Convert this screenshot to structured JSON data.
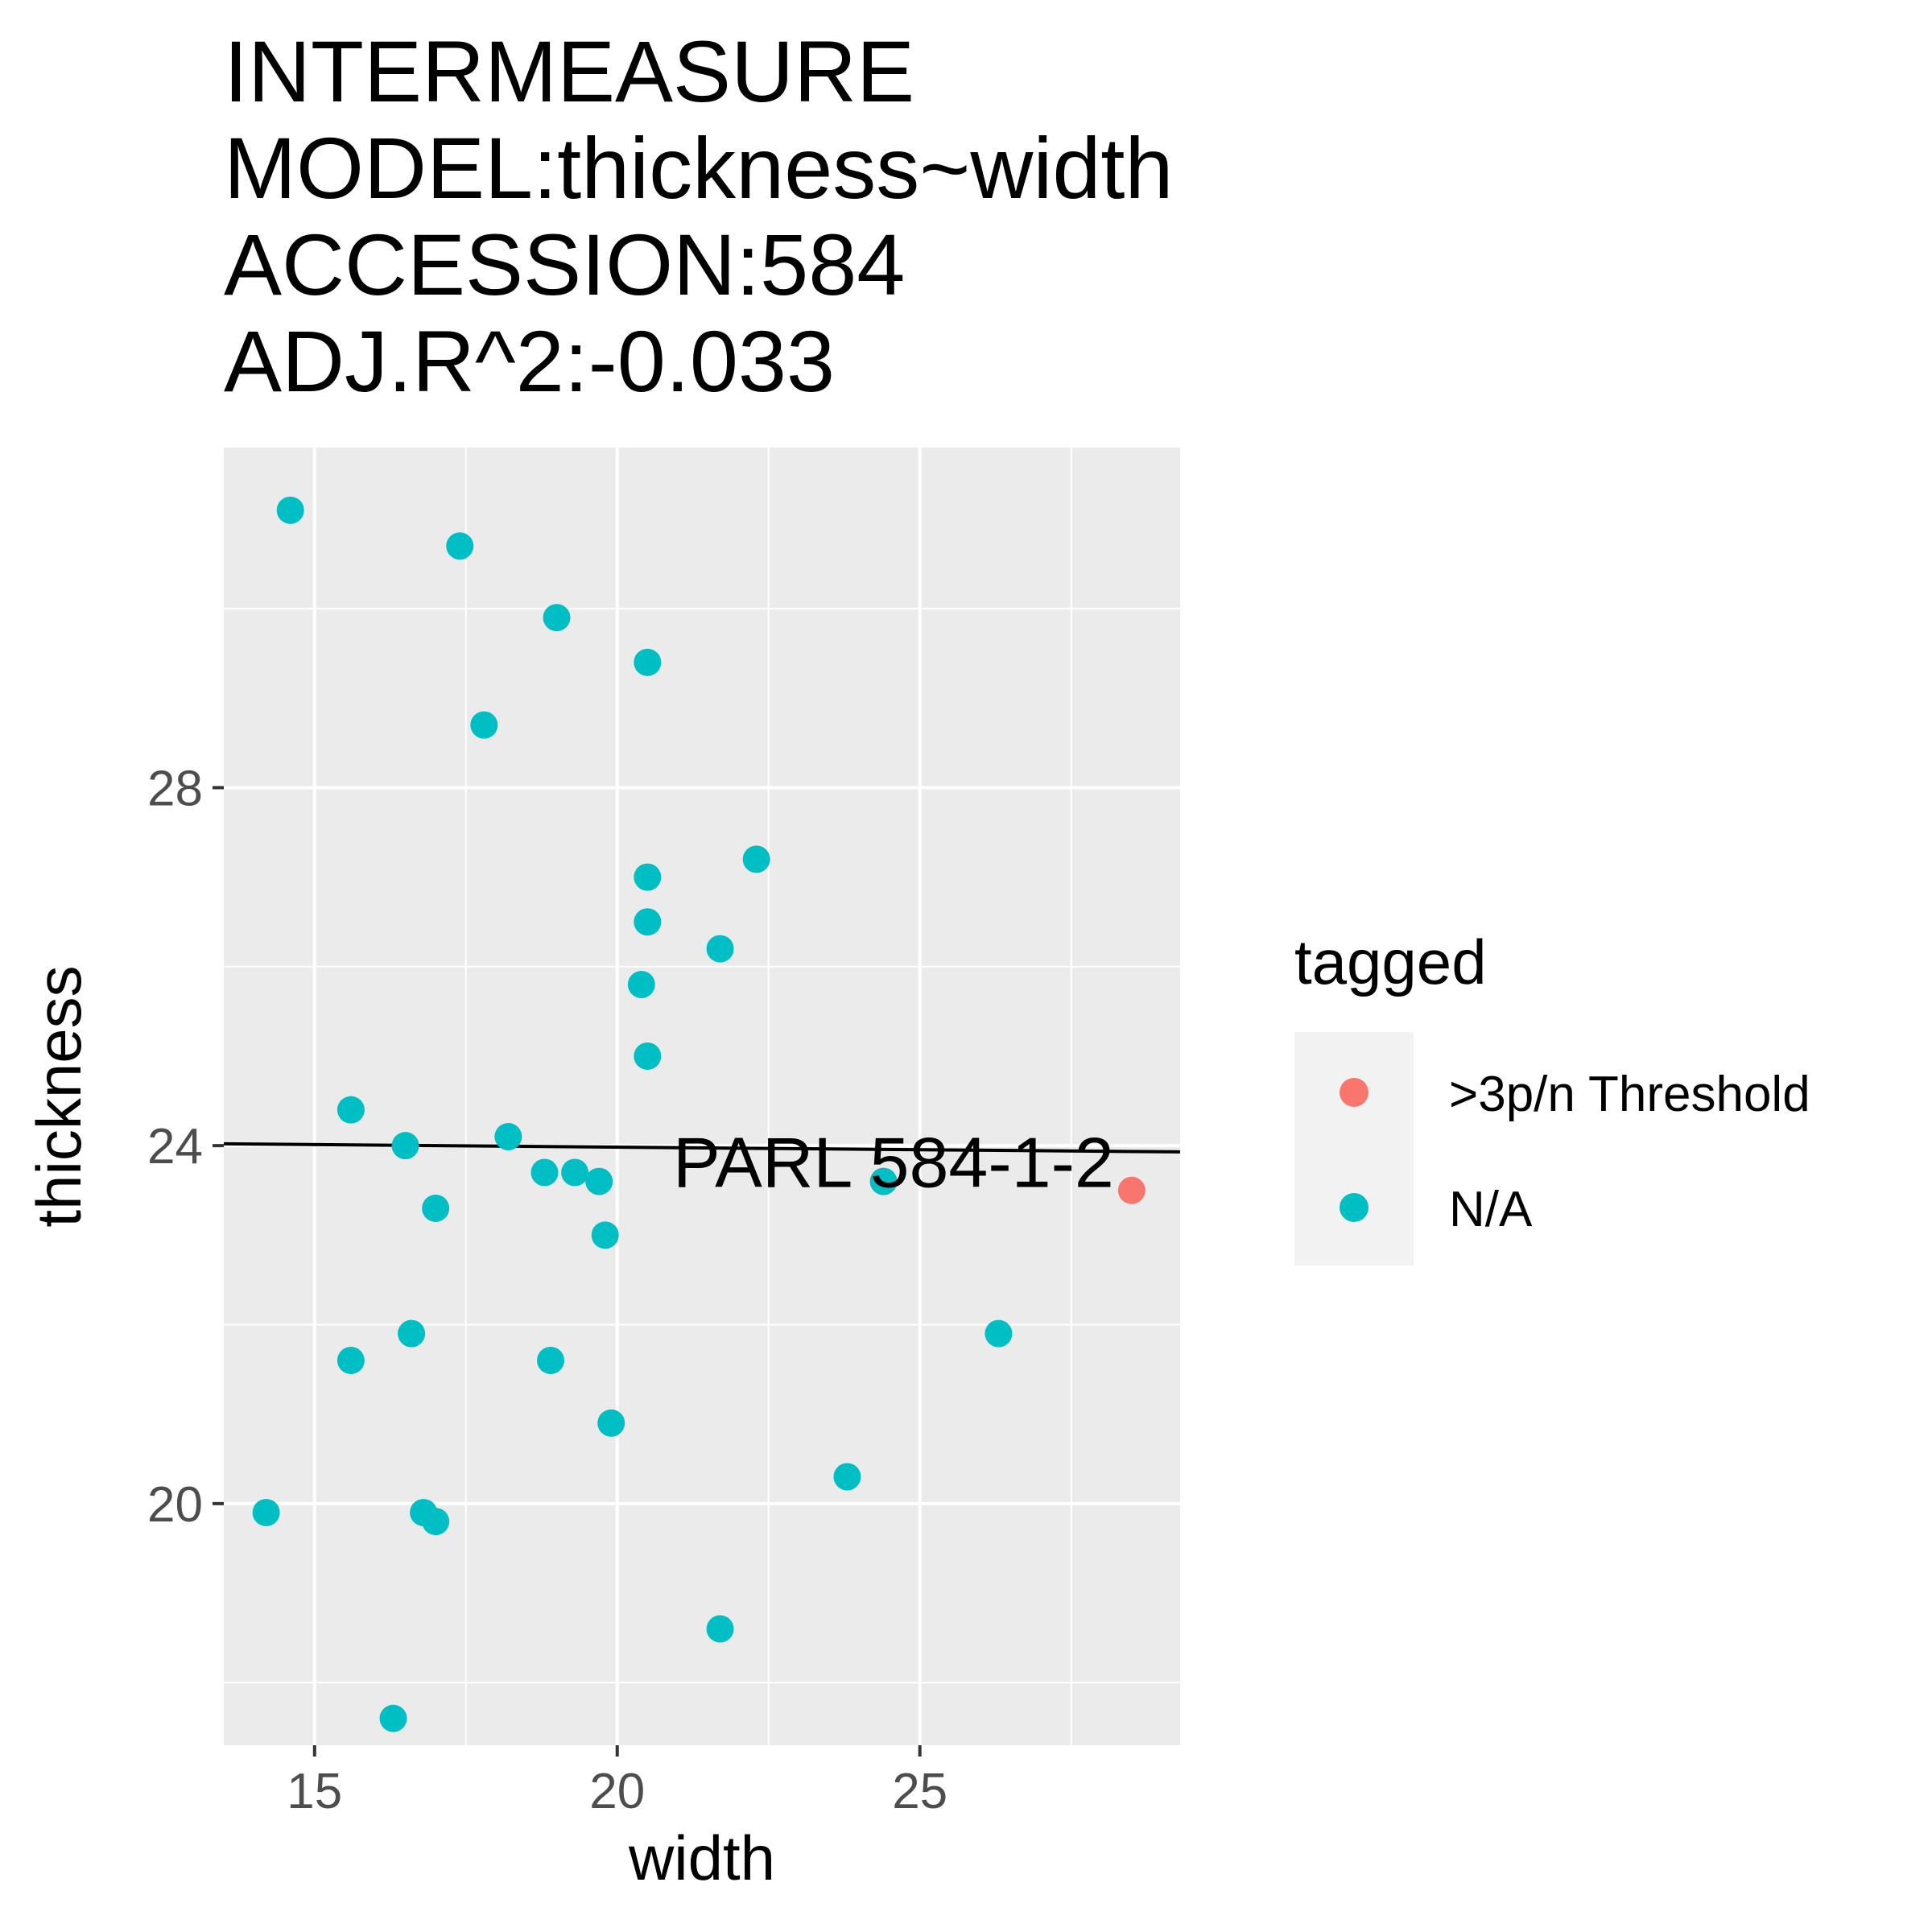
{
  "chart_data": {
    "type": "scatter",
    "title_lines": [
      "INTERMEASURE",
      "MODEL:thickness~width",
      "ACCESSION:584",
      "ADJ.R^2:-0.033"
    ],
    "xlabel": "width",
    "ylabel": "thickness",
    "xlim": [
      13.5,
      29.3
    ],
    "ylim": [
      17.3,
      31.8
    ],
    "x_ticks": [
      15,
      20,
      25
    ],
    "y_ticks": [
      20,
      24,
      28
    ],
    "grid": true,
    "legend": {
      "title": "tagged",
      "placement": "right",
      "entries": [
        {
          "label": ">3p/n Threshold",
          "color": "#F8766D"
        },
        {
          "label": "N/A",
          "color": "#00BFC4"
        }
      ]
    },
    "series": [
      {
        "name": ">3p/n Threshold",
        "color": "#F8766D",
        "points": [
          [
            28.5,
            23.5
          ]
        ]
      },
      {
        "name": "N/A",
        "color": "#00BFC4",
        "points": [
          [
            14.6,
            31.1
          ],
          [
            17.4,
            30.7
          ],
          [
            19.0,
            29.9
          ],
          [
            20.5,
            29.4
          ],
          [
            17.8,
            28.7
          ],
          [
            20.5,
            27.0
          ],
          [
            22.3,
            27.2
          ],
          [
            20.5,
            26.5
          ],
          [
            21.7,
            26.2
          ],
          [
            20.4,
            25.8
          ],
          [
            20.5,
            25.0
          ],
          [
            15.6,
            24.4
          ],
          [
            16.5,
            24.0
          ],
          [
            18.2,
            24.1
          ],
          [
            18.8,
            23.7
          ],
          [
            19.3,
            23.7
          ],
          [
            19.7,
            23.6
          ],
          [
            24.4,
            23.6
          ],
          [
            17.0,
            23.3
          ],
          [
            19.8,
            23.0
          ],
          [
            16.6,
            21.9
          ],
          [
            15.6,
            21.6
          ],
          [
            18.9,
            21.6
          ],
          [
            26.3,
            21.9
          ],
          [
            19.9,
            20.9
          ],
          [
            23.8,
            20.3
          ],
          [
            14.2,
            19.9
          ],
          [
            16.8,
            19.9
          ],
          [
            17.0,
            19.8
          ],
          [
            21.7,
            18.6
          ],
          [
            16.3,
            17.6
          ]
        ]
      }
    ],
    "fit_line": {
      "x": [
        13.5,
        29.3
      ],
      "y": [
        24.02,
        23.93
      ]
    },
    "annotations": [
      {
        "text": "PARL 584-1-2",
        "x": 28.5,
        "y": 23.5
      }
    ]
  }
}
